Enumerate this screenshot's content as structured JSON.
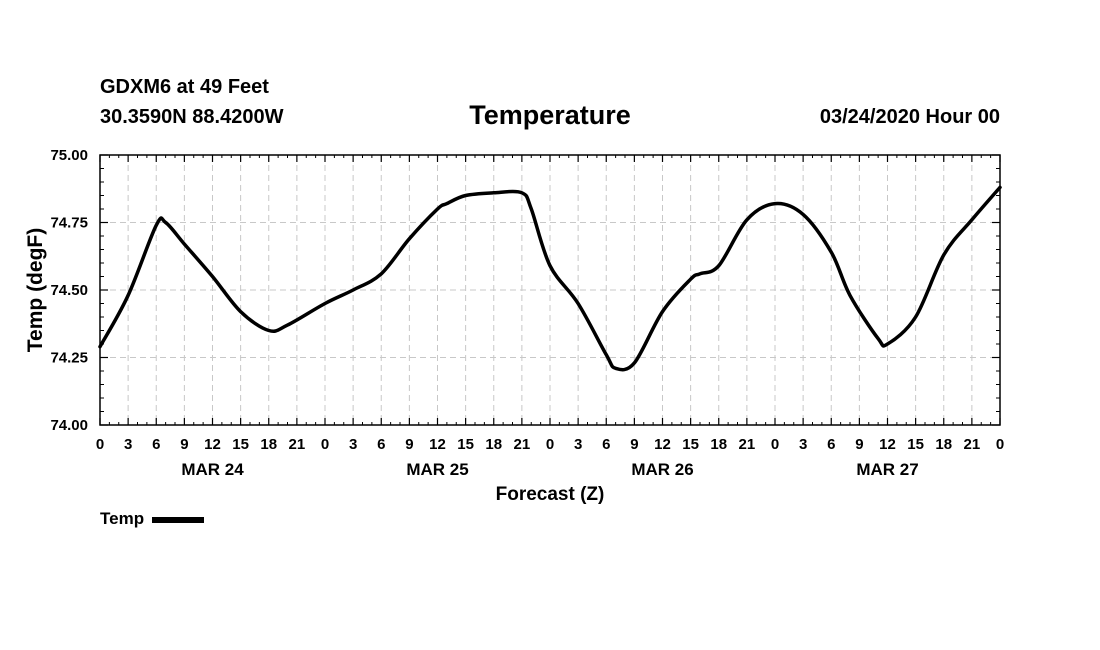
{
  "header": {
    "station": "GDXM6 at 49 Feet",
    "coords": "30.3590N 88.4200W",
    "title": "Temperature",
    "date": "03/24/2020 Hour 00"
  },
  "chart_data": {
    "type": "line",
    "title": "Temperature",
    "xlabel": "Forecast (Z)",
    "ylabel": "Temp (degF)",
    "ylim": [
      74.0,
      75.0
    ],
    "yticks": [
      "74.00",
      "74.25",
      "74.50",
      "74.75",
      "75.00"
    ],
    "xlim_hours": [
      0,
      96
    ],
    "xtick_hours": [
      0,
      3,
      6,
      9,
      12,
      15,
      18,
      21,
      24,
      27,
      30,
      33,
      36,
      39,
      42,
      45,
      48,
      51,
      54,
      57,
      60,
      63,
      66,
      69,
      72,
      75,
      78,
      81,
      84,
      87,
      90,
      93,
      96
    ],
    "xtick_labels": [
      "0",
      "3",
      "6",
      "9",
      "12",
      "15",
      "18",
      "21",
      "0",
      "3",
      "6",
      "9",
      "12",
      "15",
      "18",
      "21",
      "0",
      "3",
      "6",
      "9",
      "12",
      "15",
      "18",
      "21",
      "0",
      "3",
      "6",
      "9",
      "12",
      "15",
      "18",
      "21",
      "0"
    ],
    "day_labels": [
      {
        "label": "MAR 24",
        "hour": 12
      },
      {
        "label": "MAR 25",
        "hour": 36
      },
      {
        "label": "MAR 26",
        "hour": 60
      },
      {
        "label": "MAR 27",
        "hour": 84
      }
    ],
    "grid": true,
    "legend": [
      {
        "name": "Temp",
        "position": "bottom-left"
      }
    ],
    "series": [
      {
        "name": "Temp",
        "x": [
          0,
          3,
          6,
          7,
          9,
          12,
          15,
          18,
          20,
          24,
          27,
          30,
          33,
          36,
          37,
          39,
          42,
          45,
          46,
          48,
          51,
          54,
          55,
          57,
          60,
          63,
          64,
          66,
          69,
          72,
          75,
          78,
          80,
          83,
          84,
          87,
          90,
          93,
          96
        ],
        "values": [
          74.29,
          74.48,
          74.74,
          74.75,
          74.67,
          74.55,
          74.42,
          74.35,
          74.37,
          74.45,
          74.5,
          74.56,
          74.69,
          74.8,
          74.82,
          74.85,
          74.86,
          74.86,
          74.8,
          74.59,
          74.45,
          74.26,
          74.21,
          74.23,
          74.42,
          74.54,
          74.56,
          74.59,
          74.76,
          74.82,
          74.78,
          74.64,
          74.48,
          74.32,
          74.3,
          74.4,
          74.63,
          74.76,
          74.88
        ]
      }
    ]
  }
}
